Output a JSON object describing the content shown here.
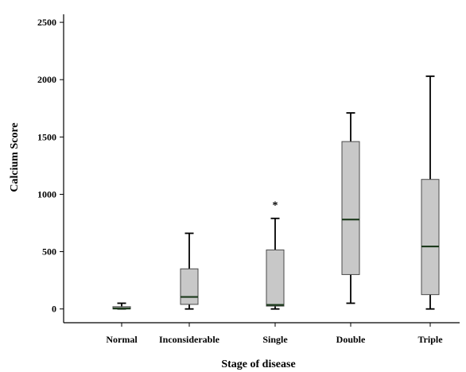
{
  "chart_data": {
    "type": "box",
    "xlabel": "Stage of disease",
    "ylabel": "Calcium Score",
    "ylim": [
      -120,
      2570
    ],
    "yticks": [
      0,
      500,
      1000,
      1500,
      2000,
      2500
    ],
    "box_fill": "#c8c8c8",
    "categories": [
      "Normal",
      "Inconsiderable",
      "Single",
      "Double",
      "Triple"
    ],
    "boxes": [
      {
        "category": "Normal",
        "whisker_low": 0,
        "q1": 0,
        "median": 5,
        "q3": 20,
        "whisker_high": 50,
        "outliers": []
      },
      {
        "category": "Inconsiderable",
        "whisker_low": 0,
        "q1": 40,
        "median": 105,
        "q3": 350,
        "whisker_high": 660,
        "outliers": []
      },
      {
        "category": "Single",
        "whisker_low": 0,
        "q1": 25,
        "median": 35,
        "q3": 515,
        "whisker_high": 790,
        "outliers": [
          930
        ]
      },
      {
        "category": "Double",
        "whisker_low": 50,
        "q1": 300,
        "median": 780,
        "q3": 1460,
        "whisker_high": 1710,
        "outliers": []
      },
      {
        "category": "Triple",
        "whisker_low": 0,
        "q1": 125,
        "median": 545,
        "q3": 1130,
        "whisker_high": 2030,
        "outliers": []
      }
    ],
    "outlier_symbol": "*"
  }
}
